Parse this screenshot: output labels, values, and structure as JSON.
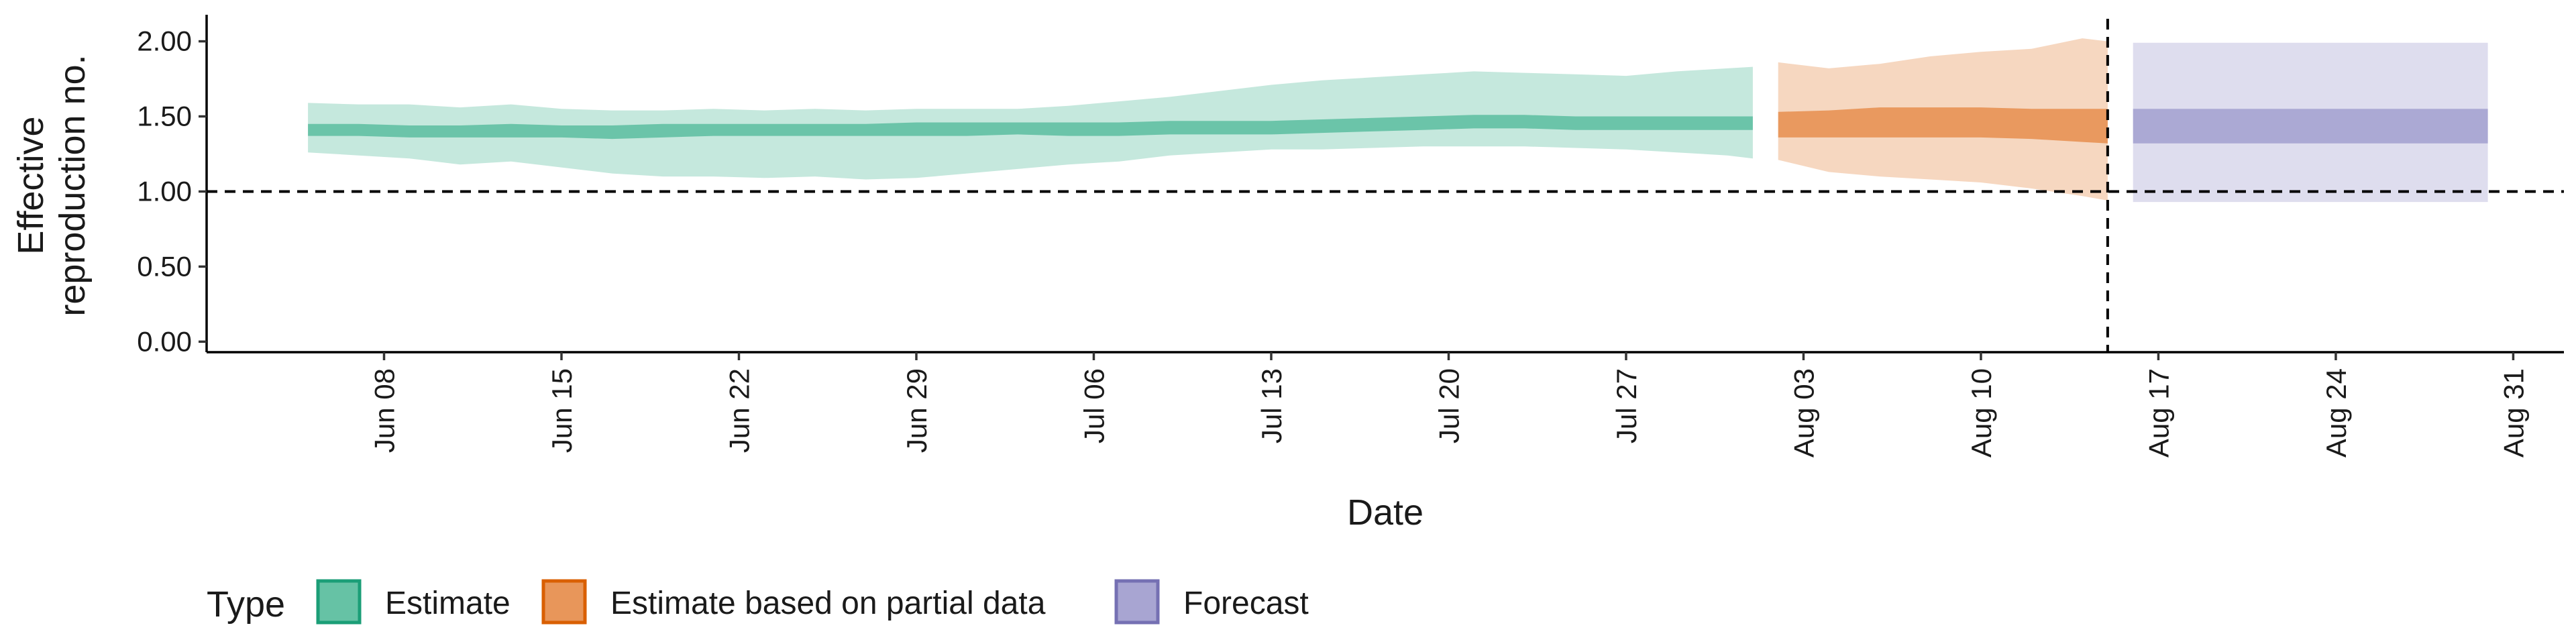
{
  "chart_data": {
    "type": "area",
    "title": "",
    "xlabel": "Date",
    "ylabel": [
      "Effective",
      "reproduction no."
    ],
    "x_range": [
      "2020-06-01",
      "2020-09-02"
    ],
    "ylim": [
      -0.07,
      2.15
    ],
    "y_ticks": [
      0.0,
      0.5,
      1.0,
      1.5,
      2.0
    ],
    "y_tick_labels": [
      "0.00",
      "0.50",
      "1.00",
      "1.50",
      "2.00"
    ],
    "x_ticks": [
      "2020-06-08",
      "2020-06-15",
      "2020-06-22",
      "2020-06-29",
      "2020-07-06",
      "2020-07-13",
      "2020-07-20",
      "2020-07-27",
      "2020-08-03",
      "2020-08-10",
      "2020-08-17",
      "2020-08-24",
      "2020-08-31"
    ],
    "x_tick_labels": [
      "Jun 08",
      "Jun 15",
      "Jun 22",
      "Jun 29",
      "Jul 06",
      "Jul 13",
      "Jul 20",
      "Jul 27",
      "Aug 03",
      "Aug 10",
      "Aug 17",
      "Aug 24",
      "Aug 31"
    ],
    "reference_line_y": 1.0,
    "reference_line_x": "2020-08-15",
    "grid": false,
    "legend": {
      "position": "bottom",
      "title": "Type",
      "entries": [
        "Estimate",
        "Estimate based on partial data",
        "Forecast"
      ]
    },
    "series": [
      {
        "name": "Estimate",
        "color": "#66c2a5",
        "edge_color": "#1b9e77",
        "x": [
          "2020-06-05",
          "2020-06-07",
          "2020-06-09",
          "2020-06-11",
          "2020-06-13",
          "2020-06-15",
          "2020-06-17",
          "2020-06-19",
          "2020-06-21",
          "2020-06-23",
          "2020-06-25",
          "2020-06-27",
          "2020-06-29",
          "2020-07-01",
          "2020-07-03",
          "2020-07-05",
          "2020-07-07",
          "2020-07-09",
          "2020-07-11",
          "2020-07-13",
          "2020-07-15",
          "2020-07-17",
          "2020-07-19",
          "2020-07-21",
          "2020-07-23",
          "2020-07-25",
          "2020-07-27",
          "2020-07-29",
          "2020-07-31",
          "2020-08-01"
        ],
        "outer_lower": [
          1.26,
          1.24,
          1.22,
          1.18,
          1.2,
          1.16,
          1.12,
          1.1,
          1.1,
          1.09,
          1.1,
          1.08,
          1.09,
          1.12,
          1.15,
          1.18,
          1.2,
          1.24,
          1.26,
          1.28,
          1.28,
          1.29,
          1.3,
          1.3,
          1.3,
          1.29,
          1.28,
          1.26,
          1.24,
          1.22
        ],
        "outer_upper": [
          1.59,
          1.58,
          1.58,
          1.56,
          1.58,
          1.55,
          1.54,
          1.54,
          1.55,
          1.54,
          1.55,
          1.54,
          1.55,
          1.55,
          1.55,
          1.57,
          1.6,
          1.63,
          1.67,
          1.71,
          1.74,
          1.76,
          1.78,
          1.8,
          1.79,
          1.78,
          1.77,
          1.8,
          1.82,
          1.83
        ],
        "inner_lower": [
          1.37,
          1.37,
          1.36,
          1.36,
          1.36,
          1.36,
          1.35,
          1.36,
          1.37,
          1.37,
          1.37,
          1.37,
          1.37,
          1.37,
          1.38,
          1.37,
          1.37,
          1.38,
          1.38,
          1.38,
          1.39,
          1.4,
          1.41,
          1.42,
          1.42,
          1.41,
          1.41,
          1.41,
          1.41,
          1.41
        ],
        "inner_upper": [
          1.45,
          1.45,
          1.44,
          1.44,
          1.45,
          1.44,
          1.44,
          1.45,
          1.45,
          1.45,
          1.45,
          1.45,
          1.46,
          1.46,
          1.46,
          1.46,
          1.46,
          1.47,
          1.47,
          1.47,
          1.48,
          1.49,
          1.5,
          1.51,
          1.51,
          1.5,
          1.5,
          1.5,
          1.5,
          1.5
        ]
      },
      {
        "name": "Estimate based on partial data",
        "color": "#e8965a",
        "edge_color": "#d95f02",
        "x": [
          "2020-08-02",
          "2020-08-04",
          "2020-08-06",
          "2020-08-08",
          "2020-08-10",
          "2020-08-12",
          "2020-08-14",
          "2020-08-15"
        ],
        "outer_lower": [
          1.21,
          1.13,
          1.1,
          1.08,
          1.06,
          1.02,
          0.97,
          0.94
        ],
        "outer_upper": [
          1.86,
          1.82,
          1.85,
          1.9,
          1.93,
          1.95,
          2.02,
          2.0
        ],
        "inner_lower": [
          1.36,
          1.36,
          1.36,
          1.36,
          1.36,
          1.35,
          1.33,
          1.32
        ],
        "inner_upper": [
          1.53,
          1.54,
          1.56,
          1.56,
          1.56,
          1.55,
          1.55,
          1.55
        ]
      },
      {
        "name": "Forecast",
        "color": "#a8a5d2",
        "edge_color": "#7570b3",
        "x": [
          "2020-08-16",
          "2020-08-30"
        ],
        "outer_lower": [
          0.93,
          0.93
        ],
        "outer_upper": [
          1.99,
          1.99
        ],
        "inner_lower": [
          1.32,
          1.32
        ],
        "inner_upper": [
          1.55,
          1.55
        ]
      }
    ]
  }
}
